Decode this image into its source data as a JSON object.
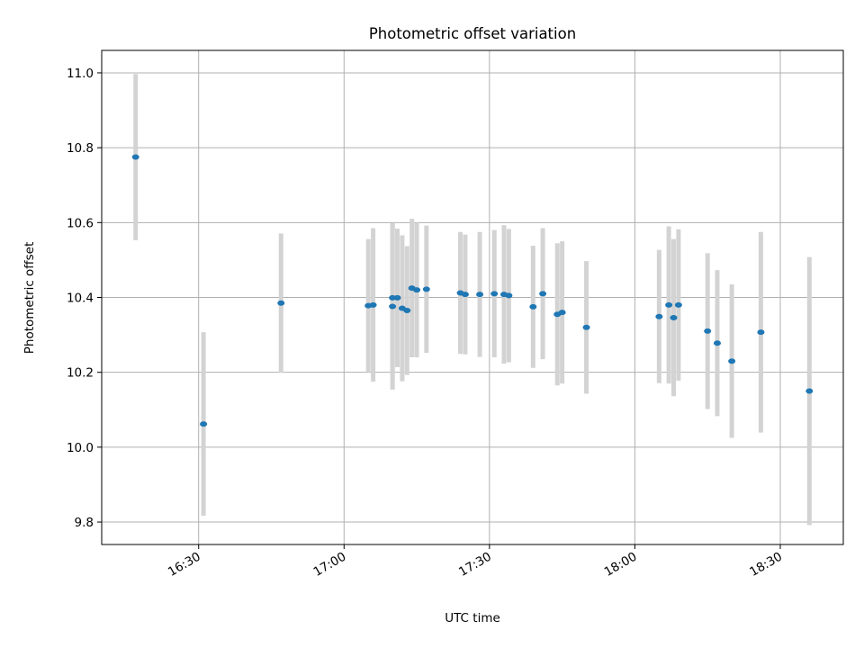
{
  "chart_data": {
    "type": "scatter",
    "title": "Photometric offset variation",
    "xlabel": "UTC time",
    "ylabel": "Photometric offset",
    "xlim": [
      "16:10",
      "18:43"
    ],
    "ylim": [
      9.74,
      11.06
    ],
    "grid": true,
    "xticks": [
      "16:30",
      "17:00",
      "17:30",
      "18:00",
      "18:30"
    ],
    "yticks": [
      "9.8",
      "10.0",
      "10.2",
      "10.4",
      "10.6",
      "10.8",
      "11.0"
    ],
    "series": [
      {
        "marker_color": "#1f77b4",
        "errorbar_color": "#d3d3d3",
        "points": [
          {
            "x": "16:17",
            "y": 10.775,
            "yerr": 0.222
          },
          {
            "x": "16:31",
            "y": 10.062,
            "yerr": 0.245
          },
          {
            "x": "16:47",
            "y": 10.385,
            "yerr": 0.186
          },
          {
            "x": "17:05",
            "y": 10.378,
            "yerr": 0.178
          },
          {
            "x": "17:06",
            "y": 10.38,
            "yerr": 0.205
          },
          {
            "x": "17:10",
            "y": 10.376,
            "yerr": 0.222
          },
          {
            "x": "17:10",
            "y": 10.399,
            "yerr": 0.2
          },
          {
            "x": "17:11",
            "y": 10.399,
            "yerr": 0.185
          },
          {
            "x": "17:12",
            "y": 10.371,
            "yerr": 0.195
          },
          {
            "x": "17:13",
            "y": 10.365,
            "yerr": 0.172
          },
          {
            "x": "17:14",
            "y": 10.425,
            "yerr": 0.185
          },
          {
            "x": "17:15",
            "y": 10.42,
            "yerr": 0.18
          },
          {
            "x": "17:17",
            "y": 10.422,
            "yerr": 0.17
          },
          {
            "x": "17:24",
            "y": 10.412,
            "yerr": 0.163
          },
          {
            "x": "17:25",
            "y": 10.408,
            "yerr": 0.16
          },
          {
            "x": "17:28",
            "y": 10.408,
            "yerr": 0.167
          },
          {
            "x": "17:31",
            "y": 10.41,
            "yerr": 0.17
          },
          {
            "x": "17:33",
            "y": 10.408,
            "yerr": 0.185
          },
          {
            "x": "17:34",
            "y": 10.405,
            "yerr": 0.178
          },
          {
            "x": "17:39",
            "y": 10.375,
            "yerr": 0.163
          },
          {
            "x": "17:41",
            "y": 10.41,
            "yerr": 0.175
          },
          {
            "x": "17:44",
            "y": 10.355,
            "yerr": 0.19
          },
          {
            "x": "17:45",
            "y": 10.36,
            "yerr": 0.19
          },
          {
            "x": "17:50",
            "y": 10.32,
            "yerr": 0.177
          },
          {
            "x": "18:05",
            "y": 10.349,
            "yerr": 0.178
          },
          {
            "x": "18:07",
            "y": 10.38,
            "yerr": 0.21
          },
          {
            "x": "18:08",
            "y": 10.346,
            "yerr": 0.21
          },
          {
            "x": "18:09",
            "y": 10.38,
            "yerr": 0.202
          },
          {
            "x": "18:15",
            "y": 10.31,
            "yerr": 0.208
          },
          {
            "x": "18:17",
            "y": 10.278,
            "yerr": 0.195
          },
          {
            "x": "18:20",
            "y": 10.23,
            "yerr": 0.205
          },
          {
            "x": "18:26",
            "y": 10.307,
            "yerr": 0.268
          },
          {
            "x": "18:36",
            "y": 10.15,
            "yerr": 0.358
          }
        ]
      }
    ]
  }
}
